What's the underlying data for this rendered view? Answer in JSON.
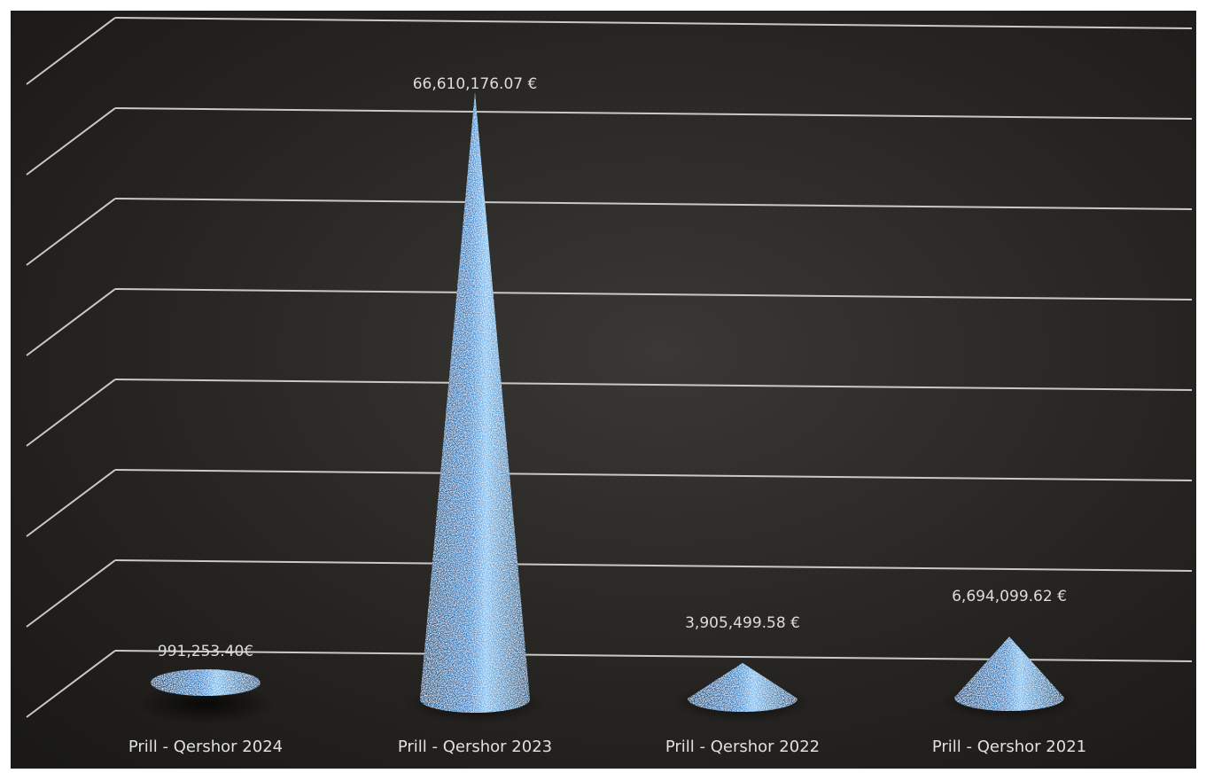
{
  "chart_data": {
    "type": "bar",
    "bar_shape": "cone",
    "categories": [
      "Prill - Qershor 2024",
      "Prill - Qershor 2023",
      "Prill - Qershor 2022",
      "Prill - Qershor 2021"
    ],
    "values": [
      991253.4,
      66610176.07,
      3905499.58,
      6694099.62
    ],
    "data_labels": [
      "991,253.40€",
      "66,610,176.07 €",
      "3,905,499.58 €",
      "6,694,099.62 €"
    ],
    "title": "",
    "xlabel": "",
    "ylabel": "",
    "ylim": [
      0,
      70000000
    ],
    "grid": true,
    "legend": "none",
    "colors": {
      "background": "#262421",
      "bar": "#2f86cc",
      "bar_highlight": "#7cc0f2",
      "bar_shade": "#16507f",
      "gridline": "#c9c9c9",
      "label_text": "#dcdcdc"
    }
  }
}
